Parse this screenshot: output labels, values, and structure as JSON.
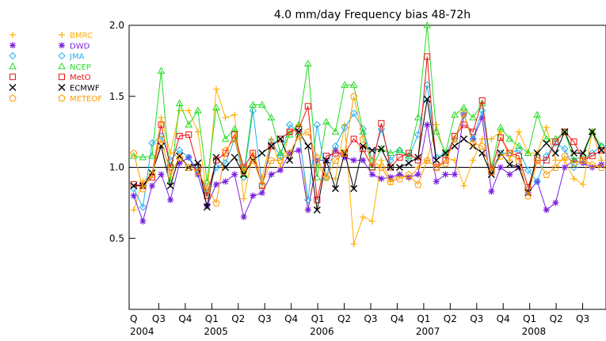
{
  "chart_data": {
    "type": "line",
    "title": "4.0 mm/day Frequency bias   48-72h",
    "xlabel": "",
    "ylabel": "",
    "ylim": [
      0.0,
      2.0
    ],
    "yticks": [
      "0.5",
      "1.0",
      "1.5",
      "2.0"
    ],
    "reference_line": 1.0,
    "grid": false,
    "legend_position": "left",
    "x_tick_labels": [
      "Q",
      "Q3",
      "Q4",
      "Q1",
      "Q2",
      "Q3",
      "Q4",
      "Q1",
      "Q2",
      "Q3",
      "Q4",
      "Q1",
      "Q2",
      "Q3",
      "Q4",
      "Q1",
      "Q2",
      "Q3"
    ],
    "year_labels": [
      "2004",
      "2005",
      "2006",
      "2007",
      "2008"
    ],
    "series": [
      {
        "name": "BMRC",
        "color": "#ffb000",
        "marker": "plus",
        "values": [
          0.7,
          0.9,
          0.95,
          1.35,
          1.1,
          1.4,
          1.4,
          1.25,
          0.8,
          1.55,
          1.35,
          1.37,
          0.78,
          1.1,
          0.93,
          1.2,
          1.0,
          1.25,
          1.3,
          0.7,
          1.02,
          0.93,
          0.92,
          1.3,
          0.46,
          0.65,
          0.62,
          1.05,
          0.9,
          0.95,
          0.92,
          1.0,
          1.05,
          1.3,
          1.07,
          1.05,
          0.87,
          1.05,
          1.2,
          1.2,
          1.25,
          1.05,
          1.25,
          1.1,
          1.1,
          1.28,
          1.05,
          1.05,
          0.92,
          0.88,
          1.25,
          1.05
        ]
      },
      {
        "name": "DWD",
        "color": "#7a1fe0",
        "marker": "asterisk",
        "values": [
          0.8,
          0.62,
          0.87,
          0.95,
          0.77,
          1.03,
          1.07,
          0.95,
          0.73,
          0.88,
          0.9,
          0.95,
          0.65,
          0.8,
          0.82,
          0.95,
          0.98,
          1.1,
          1.12,
          0.7,
          1.05,
          1.05,
          1.12,
          1.07,
          1.05,
          1.05,
          0.95,
          0.92,
          0.93,
          0.95,
          0.93,
          0.95,
          1.3,
          0.9,
          0.95,
          0.95,
          1.37,
          1.2,
          1.35,
          0.83,
          1.0,
          0.95,
          1.0,
          0.82,
          0.9,
          0.7,
          0.75,
          1.0,
          1.05,
          1.03,
          1.0,
          1.02
        ]
      },
      {
        "name": "JMA",
        "color": "#20b0f0",
        "marker": "diamond",
        "values": [
          0.85,
          0.72,
          1.17,
          1.22,
          1.05,
          1.12,
          1.07,
          0.98,
          0.82,
          1.0,
          1.03,
          1.2,
          0.93,
          1.4,
          0.87,
          1.18,
          1.08,
          1.3,
          1.25,
          0.77,
          1.3,
          0.93,
          1.15,
          1.28,
          1.38,
          1.27,
          1.05,
          1.27,
          1.05,
          1.12,
          1.07,
          1.23,
          1.58,
          1.07,
          1.1,
          1.2,
          1.37,
          1.2,
          1.4,
          0.98,
          1.1,
          1.1,
          1.12,
          0.98,
          0.9,
          1.08,
          1.17,
          1.13,
          1.0,
          1.05,
          1.1,
          1.15
        ]
      },
      {
        "name": "NCEP",
        "color": "#22dd22",
        "marker": "triangle",
        "values": [
          1.08,
          1.07,
          1.08,
          1.68,
          0.9,
          1.45,
          1.3,
          1.4,
          0.9,
          1.42,
          1.2,
          1.27,
          0.95,
          1.44,
          1.44,
          1.35,
          1.1,
          1.23,
          1.3,
          1.73,
          0.93,
          1.32,
          1.25,
          1.58,
          1.58,
          1.25,
          1.0,
          1.13,
          1.1,
          1.12,
          1.08,
          1.35,
          2.0,
          1.25,
          1.1,
          1.37,
          1.42,
          1.35,
          1.45,
          1.0,
          1.28,
          1.2,
          1.15,
          1.1,
          1.37,
          1.2,
          1.2,
          1.25,
          1.05,
          1.08,
          1.25,
          1.15
        ]
      },
      {
        "name": "MetO",
        "color": "#ee1111",
        "marker": "square",
        "values": [
          0.88,
          0.87,
          0.93,
          1.3,
          1.0,
          1.22,
          1.23,
          1.0,
          0.8,
          1.05,
          1.1,
          1.23,
          1.0,
          1.1,
          0.87,
          1.15,
          1.2,
          1.25,
          1.27,
          1.43,
          0.77,
          1.08,
          1.1,
          1.1,
          1.2,
          1.13,
          1.0,
          1.31,
          1.0,
          1.07,
          1.1,
          1.05,
          1.78,
          1.0,
          1.05,
          1.22,
          1.3,
          1.25,
          1.47,
          0.97,
          1.21,
          1.1,
          1.08,
          0.86,
          1.05,
          1.05,
          1.18,
          1.25,
          1.18,
          1.05,
          1.08,
          1.12
        ]
      },
      {
        "name": "ECMWF",
        "color": "#000000",
        "marker": "cross",
        "values": [
          0.87,
          0.87,
          0.96,
          1.15,
          0.87,
          1.08,
          1.0,
          1.03,
          0.72,
          1.07,
          1.0,
          1.07,
          0.95,
          1.05,
          1.1,
          1.15,
          1.2,
          1.05,
          1.25,
          1.15,
          0.7,
          1.05,
          0.85,
          1.1,
          0.85,
          1.15,
          1.12,
          1.13,
          1.0,
          1.0,
          1.03,
          1.07,
          1.48,
          1.05,
          1.1,
          1.15,
          1.2,
          1.15,
          1.1,
          0.95,
          1.1,
          1.02,
          1.0,
          0.82,
          1.1,
          1.17,
          1.1,
          1.25,
          1.1,
          1.1,
          1.25,
          1.12
        ]
      },
      {
        "name": "METEOF",
        "color": "#ff9900",
        "marker": "pentagon",
        "values": [
          1.1,
          0.85,
          0.95,
          1.2,
          0.95,
          1.07,
          1.0,
          0.97,
          0.85,
          0.75,
          1.12,
          1.2,
          0.97,
          1.05,
          0.88,
          1.05,
          1.05,
          1.1,
          1.22,
          1.25,
          1.07,
          0.93,
          1.05,
          1.1,
          1.5,
          1.2,
          1.05,
          1.0,
          0.9,
          0.92,
          0.95,
          0.88,
          1.05,
          1.0,
          1.03,
          1.2,
          1.38,
          1.17,
          1.15,
          0.97,
          1.08,
          1.1,
          1.05,
          0.8,
          1.05,
          0.95,
          1.0,
          1.08,
          1.03,
          1.05,
          1.02,
          1.0
        ]
      }
    ]
  }
}
